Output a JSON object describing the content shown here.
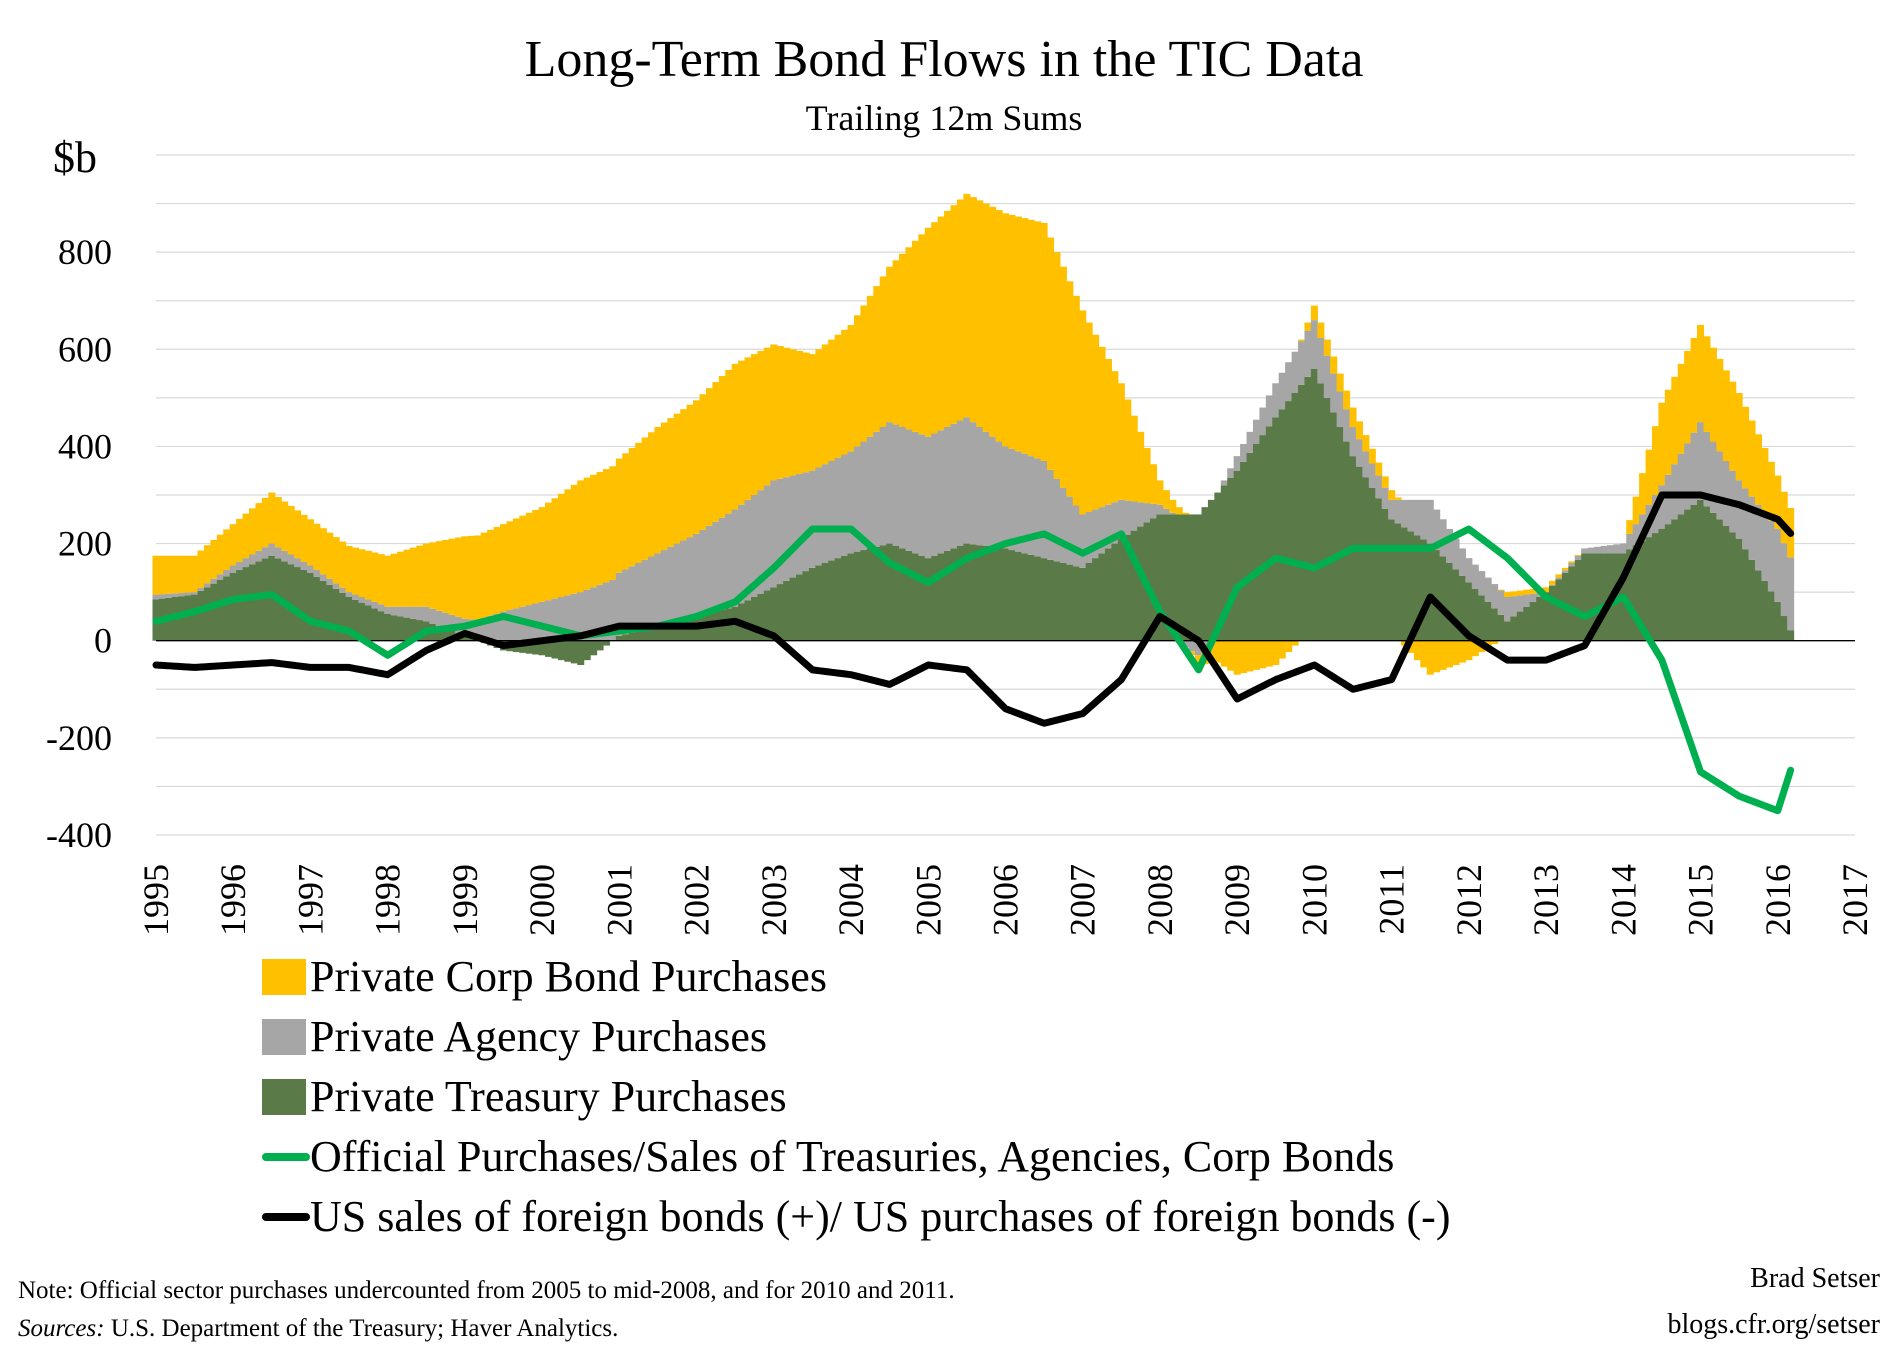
{
  "chart_data": {
    "type": "bar",
    "title": "Long-Term Bond Flows in the TIC Data",
    "subtitle": "Trailing 12m Sums",
    "ylabel": "$b",
    "xlabel": "",
    "ylim": [
      -400,
      1000
    ],
    "xlim": [
      1995,
      2017
    ],
    "yticks": [
      800,
      600,
      400,
      200,
      0,
      -200,
      -400
    ],
    "ytick_labels": [
      "800",
      "600",
      "400",
      "200",
      "0",
      "-200",
      "-400"
    ],
    "xticks": [
      1995,
      1996,
      1997,
      1998,
      1999,
      2000,
      2001,
      2002,
      2003,
      2004,
      2005,
      2006,
      2007,
      2008,
      2009,
      2010,
      2011,
      2012,
      2013,
      2014,
      2015,
      2016,
      2017
    ],
    "xtick_labels": [
      "1995",
      "1996",
      "1997",
      "1998",
      "1999",
      "2000",
      "2001",
      "2002",
      "2003",
      "2004",
      "2005",
      "2006",
      "2007",
      "2008",
      "2009",
      "2010",
      "2011",
      "2012",
      "2013",
      "2014",
      "2015",
      "2016",
      "2017"
    ],
    "grid": true,
    "legend_position": "bottom",
    "stacked": true,
    "series": [
      {
        "name": "Private Corp Bond Purchases",
        "kind": "bar",
        "color": "#FFC000",
        "x": [
          1995.0,
          1995.5,
          1996.0,
          1996.5,
          1997.0,
          1997.5,
          1998.0,
          1998.5,
          1999.0,
          1999.5,
          2000.0,
          2000.5,
          2001.0,
          2001.5,
          2002.0,
          2002.5,
          2003.0,
          2003.5,
          2004.0,
          2004.5,
          2005.0,
          2005.5,
          2006.0,
          2006.5,
          2007.0,
          2007.5,
          2008.0,
          2008.5,
          2009.0,
          2009.5,
          2010.0,
          2010.5,
          2011.0,
          2011.5,
          2012.0,
          2012.5,
          2013.0,
          2013.5,
          2014.0,
          2014.5,
          2015.0,
          2015.5,
          2016.0,
          2016.2
        ],
        "values": [
          80,
          75,
          85,
          105,
          95,
          95,
          105,
          130,
          170,
          180,
          195,
          230,
          235,
          260,
          275,
          300,
          280,
          240,
          260,
          320,
          430,
          460,
          480,
          490,
          420,
          240,
          50,
          -20,
          -70,
          -50,
          30,
          40,
          20,
          -70,
          -40,
          10,
          10,
          0,
          0,
          170,
          200,
          180,
          110,
          100
        ]
      },
      {
        "name": "Private Agency Purchases",
        "kind": "bar",
        "color": "#A6A6A6",
        "x": [
          1995.0,
          1995.5,
          1996.0,
          1996.5,
          1997.0,
          1997.5,
          1998.0,
          1998.5,
          1999.0,
          1999.5,
          2000.0,
          2000.5,
          2001.0,
          2001.5,
          2002.0,
          2002.5,
          2003.0,
          2003.5,
          2004.0,
          2004.5,
          2005.0,
          2005.5,
          2006.0,
          2006.5,
          2007.0,
          2007.5,
          2008.0,
          2008.5,
          2009.0,
          2009.5,
          2010.0,
          2010.5,
          2011.0,
          2011.5,
          2012.0,
          2012.5,
          2013.0,
          2013.5,
          2014.0,
          2014.5,
          2015.0,
          2015.5,
          2016.0,
          2016.2
        ],
        "values": [
          10,
          5,
          15,
          25,
          15,
          10,
          15,
          30,
          35,
          60,
          80,
          100,
          130,
          150,
          170,
          200,
          220,
          200,
          210,
          250,
          250,
          260,
          210,
          200,
          110,
          80,
          20,
          -30,
          30,
          70,
          100,
          60,
          40,
          90,
          50,
          50,
          0,
          10,
          20,
          90,
          160,
          120,
          150,
          150
        ]
      },
      {
        "name": "Private Treasury Purchases",
        "kind": "bar",
        "color": "#5A7A48",
        "x": [
          1995.0,
          1995.5,
          1996.0,
          1996.5,
          1997.0,
          1997.5,
          1998.0,
          1998.5,
          1999.0,
          1999.5,
          2000.0,
          2000.5,
          2001.0,
          2001.5,
          2002.0,
          2002.5,
          2003.0,
          2003.5,
          2004.0,
          2004.5,
          2005.0,
          2005.5,
          2006.0,
          2006.5,
          2007.0,
          2007.5,
          2008.0,
          2008.5,
          2009.0,
          2009.5,
          2010.0,
          2010.5,
          2011.0,
          2011.5,
          2012.0,
          2012.5,
          2013.0,
          2013.5,
          2014.0,
          2014.5,
          2015.0,
          2015.5,
          2016.0,
          2016.2
        ],
        "values": [
          85,
          95,
          140,
          175,
          140,
          90,
          55,
          40,
          10,
          -20,
          -30,
          -50,
          10,
          30,
          50,
          70,
          110,
          150,
          180,
          200,
          170,
          200,
          190,
          170,
          150,
          210,
          260,
          260,
          350,
          460,
          560,
          380,
          250,
          200,
          120,
          40,
          100,
          180,
          180,
          230,
          290,
          210,
          80,
          10
        ]
      },
      {
        "name": "Official Purchases/Sales of Treasuries, Agencies, Corp Bonds",
        "kind": "line",
        "color": "#00B050",
        "x": [
          1995.0,
          1995.5,
          1996.0,
          1996.5,
          1997.0,
          1997.5,
          1998.0,
          1998.5,
          1999.0,
          1999.5,
          2000.0,
          2000.5,
          2001.0,
          2001.5,
          2002.0,
          2002.5,
          2003.0,
          2003.5,
          2004.0,
          2004.5,
          2005.0,
          2005.5,
          2006.0,
          2006.5,
          2007.0,
          2007.5,
          2008.0,
          2008.5,
          2009.0,
          2009.5,
          2010.0,
          2010.5,
          2011.0,
          2011.5,
          2012.0,
          2012.5,
          2013.0,
          2013.5,
          2014.0,
          2014.5,
          2015.0,
          2015.5,
          2016.0,
          2016.2
        ],
        "values": [
          40,
          60,
          85,
          95,
          40,
          20,
          -30,
          20,
          30,
          50,
          30,
          10,
          20,
          30,
          50,
          80,
          150,
          230,
          230,
          160,
          120,
          170,
          200,
          220,
          180,
          220,
          60,
          -60,
          110,
          170,
          150,
          190,
          190,
          190,
          230,
          170,
          90,
          50,
          90,
          -40,
          -270,
          -320,
          -350,
          -250
        ]
      },
      {
        "name": "US sales of foreign bonds (+)/ US purchases of foreign bonds (-)",
        "kind": "line",
        "color": "#000000",
        "x": [
          1995.0,
          1995.5,
          1996.0,
          1996.5,
          1997.0,
          1997.5,
          1998.0,
          1998.5,
          1999.0,
          1999.5,
          2000.0,
          2000.5,
          2001.0,
          2001.5,
          2002.0,
          2002.5,
          2003.0,
          2003.5,
          2004.0,
          2004.5,
          2005.0,
          2005.5,
          2006.0,
          2006.5,
          2007.0,
          2007.5,
          2008.0,
          2008.5,
          2009.0,
          2009.5,
          2010.0,
          2010.5,
          2011.0,
          2011.5,
          2012.0,
          2012.5,
          2013.0,
          2013.5,
          2014.0,
          2014.5,
          2015.0,
          2015.5,
          2016.0,
          2016.2
        ],
        "values": [
          -50,
          -55,
          -50,
          -45,
          -55,
          -55,
          -70,
          -20,
          15,
          -10,
          0,
          10,
          30,
          30,
          30,
          40,
          10,
          -60,
          -70,
          -90,
          -50,
          -60,
          -140,
          -170,
          -150,
          -80,
          50,
          0,
          -120,
          -80,
          -50,
          -100,
          -80,
          90,
          10,
          -40,
          -40,
          -10,
          130,
          300,
          300,
          280,
          250,
          215
        ]
      }
    ]
  },
  "notes": {
    "note_line": "Note: Official sector purchases undercounted from 2005 to mid-2008, and for 2010 and 2011.",
    "sources_label": "Sources:",
    "sources_text": " U.S. Department of the Treasury; Haver Analytics.",
    "author": "Brad Setser",
    "website": "blogs.cfr.org/setser"
  }
}
